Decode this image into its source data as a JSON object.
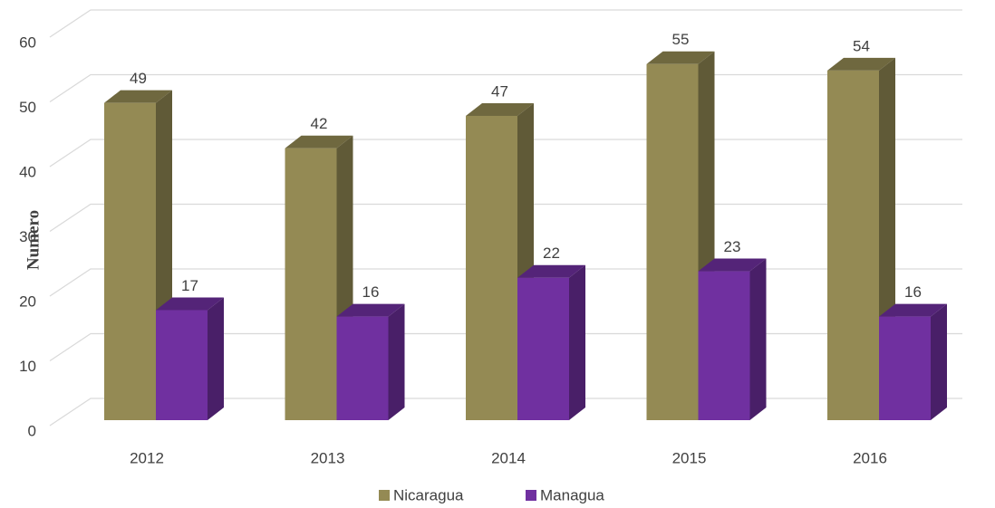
{
  "chart_data": {
    "type": "bar3d",
    "y_label": "Numero",
    "categories": [
      "2012",
      "2013",
      "2014",
      "2015",
      "2016"
    ],
    "series": [
      {
        "name": "Nicaragua",
        "color": "#948a54",
        "values": [
          49,
          42,
          47,
          55,
          54
        ]
      },
      {
        "name": "Managua",
        "color": "#7030a0",
        "values": [
          17,
          16,
          22,
          23,
          16
        ]
      }
    ],
    "ylim": [
      0,
      60
    ],
    "yticks": [
      0,
      10,
      20,
      30,
      40,
      50,
      60
    ],
    "grid": true,
    "legend": "bottom"
  }
}
